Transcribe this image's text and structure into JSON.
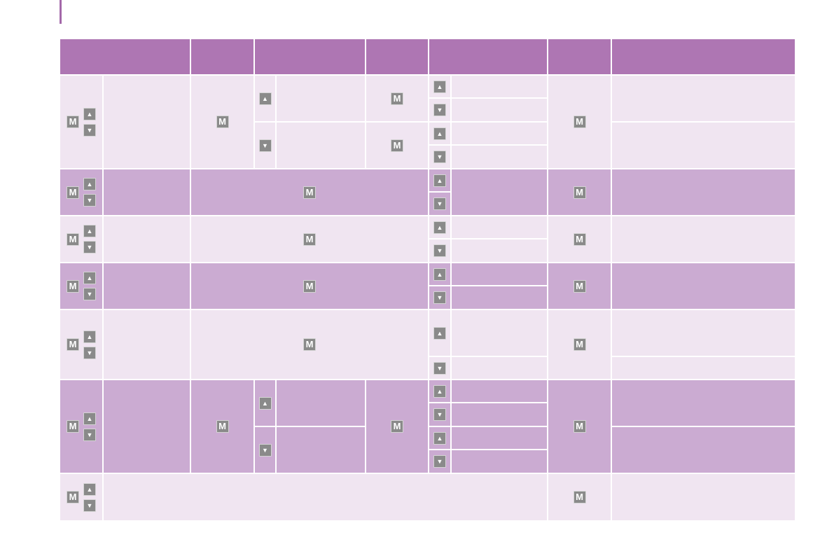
{
  "colors": {
    "accent_bar": "#a368a9",
    "header": "#ae76b3",
    "row_light": "#f0e5f1",
    "row_dark": "#cbabd2",
    "key_background": "#8a8a8a"
  },
  "keys": {
    "mode": "M",
    "up": "▲",
    "down": "▼"
  }
}
